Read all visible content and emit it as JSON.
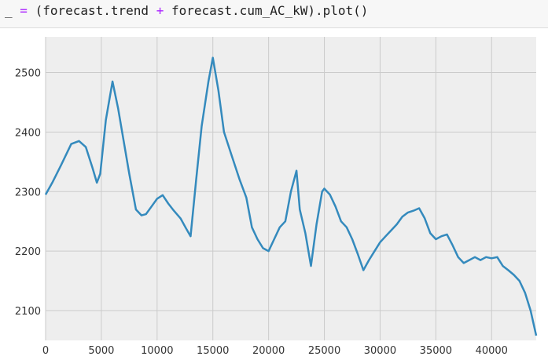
{
  "code_cell": {
    "underscore": "_",
    "equals": "=",
    "open_paren": "(",
    "left_operand": "forecast.trend",
    "plus": "+",
    "right_operand": "forecast.cum_AC_kW",
    "close_call": ").plot()"
  },
  "chart_data": {
    "type": "line",
    "title": "",
    "xlabel": "",
    "ylabel": "",
    "xlim": [
      0,
      44000
    ],
    "ylim": [
      2050,
      2560
    ],
    "x_ticks": [
      0,
      5000,
      10000,
      15000,
      20000,
      25000,
      30000,
      35000,
      40000
    ],
    "x_tick_labels": [
      "0",
      "5000",
      "10000",
      "15000",
      "20000",
      "25000",
      "30000",
      "35000",
      "40000"
    ],
    "y_ticks": [
      2100,
      2200,
      2300,
      2400,
      2500
    ],
    "y_tick_labels": [
      "2100",
      "2200",
      "2300",
      "2400",
      "2500"
    ],
    "grid": true,
    "line_color": "#348abd",
    "background_color": "#eeeeee",
    "grid_color": "#cbcbcb",
    "series": [
      {
        "x": [
          0,
          600,
          1400,
          2300,
          3000,
          3600,
          4200,
          4600,
          4900,
          5400,
          6000,
          6500,
          7000,
          7500,
          8100,
          8600,
          9000,
          9500,
          10000,
          10500,
          11000,
          11500,
          12100,
          12600,
          13000,
          13500,
          14000,
          14600,
          15000,
          15500,
          16000,
          16700,
          17400,
          18000,
          18500,
          19000,
          19500,
          20000,
          20500,
          21000,
          21500,
          22000,
          22500,
          22800,
          23300,
          23800,
          24300,
          24800,
          25000,
          25500,
          26000,
          26500,
          27000,
          27500,
          28000,
          28500,
          29000,
          29500,
          30000,
          30500,
          31000,
          31500,
          32000,
          32500,
          33000,
          33500,
          34000,
          34500,
          35000,
          35500,
          36000,
          36500,
          37000,
          37500,
          38000,
          38500,
          39000,
          39500,
          40000,
          40500,
          41000,
          41500,
          42000,
          42500,
          43000,
          43500,
          44000
        ],
        "y": [
          2295,
          2315,
          2345,
          2380,
          2385,
          2375,
          2340,
          2315,
          2330,
          2420,
          2485,
          2440,
          2385,
          2330,
          2270,
          2260,
          2262,
          2275,
          2288,
          2294,
          2280,
          2268,
          2255,
          2238,
          2225,
          2320,
          2410,
          2485,
          2525,
          2470,
          2400,
          2360,
          2320,
          2290,
          2240,
          2220,
          2205,
          2200,
          2220,
          2240,
          2250,
          2300,
          2335,
          2270,
          2230,
          2175,
          2245,
          2300,
          2305,
          2295,
          2275,
          2250,
          2240,
          2220,
          2195,
          2168,
          2185,
          2200,
          2215,
          2225,
          2235,
          2245,
          2258,
          2265,
          2268,
          2272,
          2255,
          2230,
          2220,
          2225,
          2228,
          2210,
          2190,
          2180,
          2185,
          2190,
          2185,
          2190,
          2188,
          2190,
          2175,
          2168,
          2160,
          2150,
          2130,
          2100,
          2058
        ]
      }
    ]
  }
}
